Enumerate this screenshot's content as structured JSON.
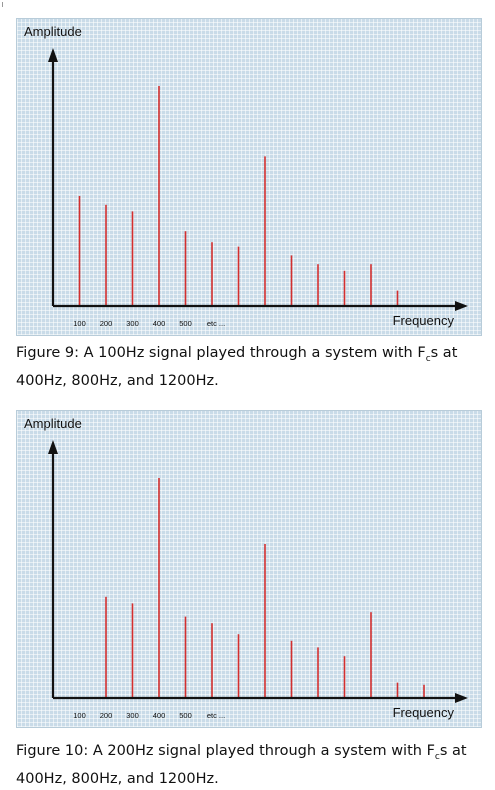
{
  "chart_data": [
    {
      "type": "bar",
      "ylabel": "Amplitude",
      "xlabel": "Frequency",
      "tick_labels": [
        "100",
        "200",
        "300",
        "400",
        "500",
        "etc ..."
      ],
      "x": [
        100,
        200,
        300,
        400,
        500,
        600,
        700,
        800,
        900,
        1000,
        1100,
        1200,
        1300
      ],
      "values": [
        50,
        46,
        43,
        100,
        34,
        29,
        27,
        68,
        23,
        19,
        16,
        19,
        7
      ],
      "ylim": [
        0,
        110
      ],
      "xlim": [
        0,
        1550
      ],
      "color": "#d32f2f",
      "caption_parts": [
        "Figure 9: A 100Hz signal played through a system with F",
        "c",
        "s at 400Hz, 800Hz, and 1200Hz."
      ]
    },
    {
      "type": "bar",
      "ylabel": "Amplitude",
      "xlabel": "Frequency",
      "tick_labels": [
        "100",
        "200",
        "300",
        "400",
        "500",
        "etc ..."
      ],
      "x": [
        200,
        300,
        400,
        500,
        600,
        700,
        800,
        900,
        1000,
        1100,
        1200,
        1300,
        1400
      ],
      "values": [
        46,
        43,
        100,
        37,
        34,
        29,
        70,
        26,
        23,
        19,
        39,
        7,
        6
      ],
      "ylim": [
        0,
        110
      ],
      "xlim": [
        0,
        1550
      ],
      "color": "#d32f2f",
      "caption_parts": [
        "Figure 10: A 200Hz signal played through a system with F",
        "c",
        "s at 400Hz, 800Hz, and 1200Hz."
      ]
    }
  ]
}
